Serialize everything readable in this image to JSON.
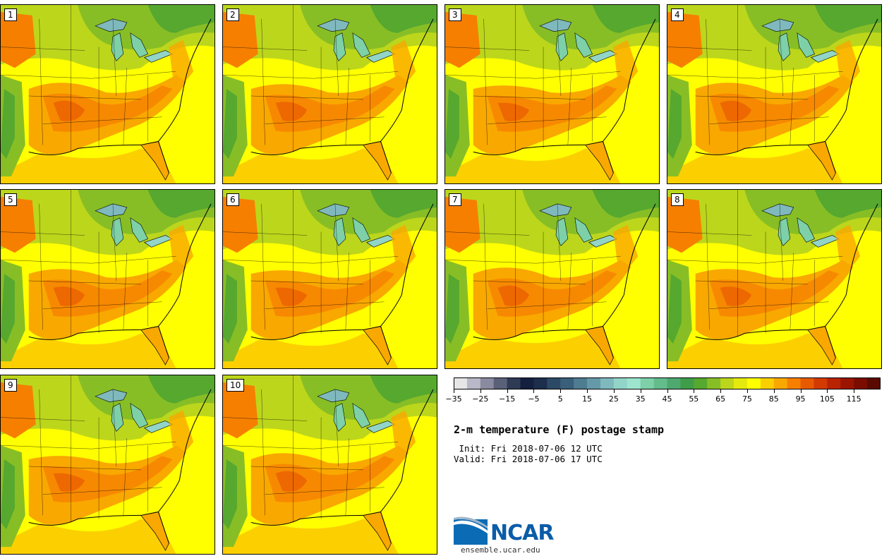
{
  "panels": [
    {
      "label": "1"
    },
    {
      "label": "2"
    },
    {
      "label": "3"
    },
    {
      "label": "4"
    },
    {
      "label": "5"
    },
    {
      "label": "6"
    },
    {
      "label": "7"
    },
    {
      "label": "8"
    },
    {
      "label": "9"
    },
    {
      "label": "10"
    }
  ],
  "colorbar": {
    "colors": [
      "#e6e6e6",
      "#b8b8c8",
      "#8a8aa0",
      "#5a6078",
      "#2f3a55",
      "#14203d",
      "#1c2e4c",
      "#2c4a66",
      "#3a5f7a",
      "#4e7c90",
      "#6599a8",
      "#7fb9bd",
      "#92d5c8",
      "#9de5cf",
      "#7dd0a8",
      "#64bb8c",
      "#4ea870",
      "#3f9d4a",
      "#56a82f",
      "#88be25",
      "#bcd61c",
      "#e5ea0e",
      "#ffff00",
      "#fcd000",
      "#f9a800",
      "#f67f00",
      "#e85a00",
      "#d23a00",
      "#b82300",
      "#9a1400",
      "#7a0c00",
      "#5a0a00"
    ],
    "tick_labels": [
      "−35",
      "−25",
      "−15",
      "−5",
      "5",
      "15",
      "25",
      "35",
      "45",
      "55",
      "65",
      "75",
      "85",
      "95",
      "105",
      "115"
    ]
  },
  "title": "2-m temperature (F) postage stamp",
  "init": " Init: Fri 2018-07-06 12 UTC",
  "valid": "Valid: Fri 2018-07-06 17 UTC",
  "logo": {
    "text": "NCAR",
    "url": "ensemble.ucar.edu"
  }
}
